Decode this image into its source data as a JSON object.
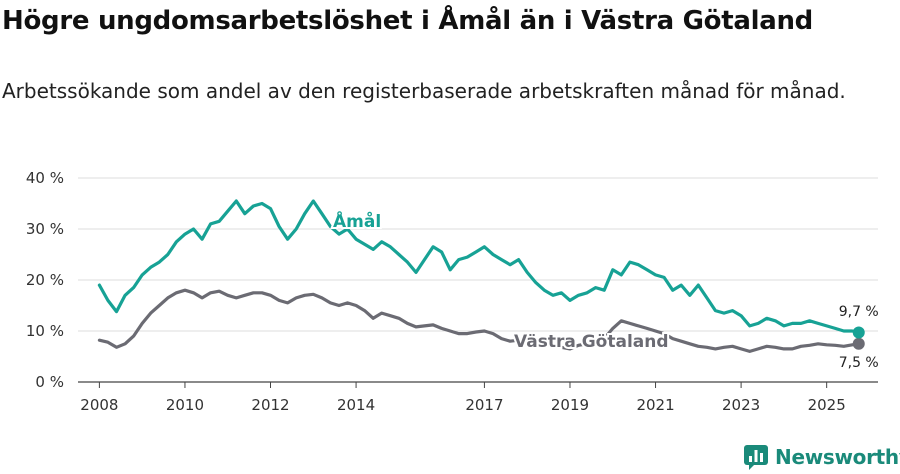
{
  "chart_data": {
    "type": "line",
    "title": "Högre ungdomsarbetslöshet i Åmål än i Västra Götaland",
    "subtitle": "Arbetssökande som andel av den registerbaserade arbetskraften månad för månad.",
    "xlabel": "",
    "ylabel": "",
    "ylim": [
      0,
      40
    ],
    "xlim": [
      2007.5,
      2026.2
    ],
    "grid": true,
    "y_ticks": [
      0,
      10,
      20,
      30,
      40
    ],
    "y_tick_labels": [
      "0 %",
      "10 %",
      "20 %",
      "30 %",
      "40 %"
    ],
    "x_ticks": [
      2008,
      2010,
      2012,
      2014,
      2017,
      2019,
      2021,
      2023,
      2025
    ],
    "x_tick_labels": [
      "2008",
      "2010",
      "2012",
      "2014",
      "2017",
      "2019",
      "2021",
      "2023",
      "2025"
    ],
    "series": [
      {
        "name": "Åmål",
        "color": "#17a295",
        "end_label": "9,7 %",
        "x": [
          2008.0,
          2008.2,
          2008.4,
          2008.6,
          2008.8,
          2009.0,
          2009.2,
          2009.4,
          2009.6,
          2009.8,
          2010.0,
          2010.2,
          2010.4,
          2010.6,
          2010.8,
          2011.0,
          2011.2,
          2011.4,
          2011.6,
          2011.8,
          2012.0,
          2012.2,
          2012.4,
          2012.6,
          2012.8,
          2013.0,
          2013.2,
          2013.4,
          2013.6,
          2013.8,
          2014.0,
          2014.2,
          2014.4,
          2014.6,
          2014.8,
          2015.0,
          2015.2,
          2015.4,
          2015.6,
          2015.8,
          2016.0,
          2016.2,
          2016.4,
          2016.6,
          2016.8,
          2017.0,
          2017.2,
          2017.4,
          2017.6,
          2017.8,
          2018.0,
          2018.2,
          2018.4,
          2018.6,
          2018.8,
          2019.0,
          2019.2,
          2019.4,
          2019.6,
          2019.8,
          2020.0,
          2020.2,
          2020.4,
          2020.6,
          2020.8,
          2021.0,
          2021.2,
          2021.4,
          2021.6,
          2021.8,
          2022.0,
          2022.2,
          2022.4,
          2022.6,
          2022.8,
          2023.0,
          2023.2,
          2023.4,
          2023.6,
          2023.8,
          2024.0,
          2024.2,
          2024.4,
          2024.6,
          2024.8,
          2025.0,
          2025.2,
          2025.4,
          2025.6,
          2025.75
        ],
        "values": [
          19.0,
          16.0,
          13.8,
          17.0,
          18.5,
          21.0,
          22.5,
          23.5,
          25.0,
          27.5,
          29.0,
          30.0,
          28.0,
          31.0,
          31.5,
          33.5,
          35.5,
          33.0,
          34.5,
          35.0,
          34.0,
          30.5,
          28.0,
          30.0,
          33.0,
          35.5,
          33.0,
          30.5,
          29.0,
          30.0,
          28.0,
          27.0,
          26.0,
          27.5,
          26.5,
          25.0,
          23.5,
          21.5,
          24.0,
          26.5,
          25.5,
          22.0,
          24.0,
          24.5,
          25.5,
          26.5,
          25.0,
          24.0,
          23.0,
          24.0,
          21.5,
          19.5,
          18.0,
          17.0,
          17.5,
          16.0,
          17.0,
          17.5,
          18.5,
          18.0,
          22.0,
          21.0,
          23.5,
          23.0,
          22.0,
          21.0,
          20.5,
          18.0,
          19.0,
          17.0,
          19.0,
          16.5,
          14.0,
          13.5,
          14.0,
          13.0,
          11.0,
          11.5,
          12.5,
          12.0,
          11.0,
          11.5,
          11.5,
          12.0,
          11.5,
          11.0,
          10.5,
          10.0,
          10.0,
          9.7
        ]
      },
      {
        "name": "Västra Götaland",
        "color": "#6b6b73",
        "end_label": "7,5 %",
        "x": [
          2008.0,
          2008.2,
          2008.4,
          2008.6,
          2008.8,
          2009.0,
          2009.2,
          2009.4,
          2009.6,
          2009.8,
          2010.0,
          2010.2,
          2010.4,
          2010.6,
          2010.8,
          2011.0,
          2011.2,
          2011.4,
          2011.6,
          2011.8,
          2012.0,
          2012.2,
          2012.4,
          2012.6,
          2012.8,
          2013.0,
          2013.2,
          2013.4,
          2013.6,
          2013.8,
          2014.0,
          2014.2,
          2014.4,
          2014.6,
          2014.8,
          2015.0,
          2015.2,
          2015.4,
          2015.6,
          2015.8,
          2016.0,
          2016.2,
          2016.4,
          2016.6,
          2016.8,
          2017.0,
          2017.2,
          2017.4,
          2017.6,
          2017.8,
          2018.0,
          2018.2,
          2018.4,
          2018.6,
          2018.8,
          2019.0,
          2019.2,
          2019.4,
          2019.6,
          2019.8,
          2020.0,
          2020.2,
          2020.4,
          2020.6,
          2020.8,
          2021.0,
          2021.2,
          2021.4,
          2021.6,
          2021.8,
          2022.0,
          2022.2,
          2022.4,
          2022.6,
          2022.8,
          2023.0,
          2023.2,
          2023.4,
          2023.6,
          2023.8,
          2024.0,
          2024.2,
          2024.4,
          2024.6,
          2024.8,
          2025.0,
          2025.2,
          2025.4,
          2025.6,
          2025.75
        ],
        "values": [
          8.2,
          7.8,
          6.8,
          7.5,
          9.0,
          11.5,
          13.5,
          15.0,
          16.5,
          17.5,
          18.0,
          17.5,
          16.5,
          17.5,
          17.8,
          17.0,
          16.5,
          17.0,
          17.5,
          17.5,
          17.0,
          16.0,
          15.5,
          16.5,
          17.0,
          17.2,
          16.5,
          15.5,
          15.0,
          15.5,
          15.0,
          14.0,
          12.5,
          13.5,
          13.0,
          12.5,
          11.5,
          10.8,
          11.0,
          11.2,
          10.5,
          10.0,
          9.5,
          9.5,
          9.8,
          10.0,
          9.5,
          8.5,
          8.0,
          8.2,
          8.5,
          8.0,
          7.5,
          7.0,
          6.8,
          6.5,
          7.2,
          7.5,
          7.8,
          8.5,
          10.5,
          12.0,
          11.5,
          11.0,
          10.5,
          10.0,
          9.5,
          8.5,
          8.0,
          7.5,
          7.0,
          6.8,
          6.5,
          6.8,
          7.0,
          6.5,
          6.0,
          6.5,
          7.0,
          6.8,
          6.5,
          6.5,
          7.0,
          7.2,
          7.5,
          7.3,
          7.2,
          7.0,
          7.3,
          7.5
        ]
      }
    ]
  },
  "brand": {
    "name": "Newsworthy",
    "color": "#1a8a7a"
  }
}
